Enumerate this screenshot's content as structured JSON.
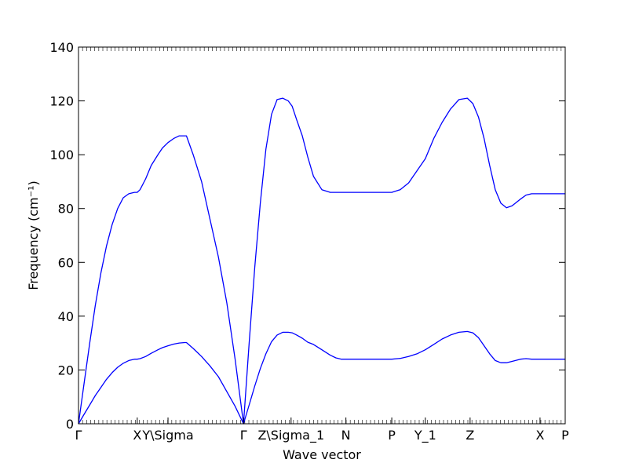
{
  "chart_data": {
    "type": "line",
    "xlabel": "Wave vector",
    "ylabel": "Frequency (cm⁻¹)",
    "ylim": [
      0,
      140
    ],
    "yticks": [
      0,
      20,
      40,
      60,
      80,
      100,
      120,
      140
    ],
    "x_range": [
      0,
      8.7
    ],
    "grid": false,
    "series_color": "#0000ff",
    "x_ticks": [
      {
        "label": "Γ",
        "x": 0.0
      },
      {
        "label": "X",
        "x": 1.05
      },
      {
        "label": "Y\\Sigma",
        "x": 1.6
      },
      {
        "label": "Γ",
        "x": 2.95
      },
      {
        "label": "Z\\Sigma_1",
        "x": 3.8
      },
      {
        "label": "N",
        "x": 4.78
      },
      {
        "label": "P",
        "x": 5.6
      },
      {
        "label": "Y_1",
        "x": 6.2
      },
      {
        "label": "Z",
        "x": 7.0
      },
      {
        "label": "X",
        "x": 8.25
      },
      {
        "label": "P",
        "x": 8.7
      }
    ],
    "series": [
      {
        "x": [
          0.0,
          0.1,
          0.2,
          0.3,
          0.4,
          0.5,
          0.6,
          0.7,
          0.8,
          0.9,
          1.0,
          1.05,
          1.1,
          1.2,
          1.3,
          1.42,
          1.5,
          1.6,
          1.7,
          1.8,
          1.9,
          1.93,
          2.05,
          2.2,
          2.35,
          2.5,
          2.65,
          2.8,
          2.95,
          3.05,
          3.15,
          3.25,
          3.35,
          3.45,
          3.55,
          3.65,
          3.75,
          3.82,
          3.9,
          4.0,
          4.1,
          4.2,
          4.35,
          4.5,
          4.6,
          4.7,
          4.78,
          4.9,
          5.1,
          5.3,
          5.6,
          5.75,
          5.9,
          6.05,
          6.2,
          6.35,
          6.5,
          6.65,
          6.8,
          6.95,
          7.05,
          7.15,
          7.25,
          7.35,
          7.45,
          7.55,
          7.65,
          7.75,
          7.9,
          8.0,
          8.1,
          8.2,
          8.3,
          8.5,
          8.7
        ],
        "y": [
          0,
          15,
          30,
          44,
          56,
          66,
          74,
          80,
          84,
          85.5,
          86,
          86,
          87,
          91,
          96,
          100,
          102.5,
          104.5,
          106,
          107,
          107,
          107,
          100,
          90,
          76,
          62,
          45,
          24,
          0,
          30,
          58,
          82,
          102,
          115,
          120.5,
          121,
          120,
          118,
          113,
          107,
          99,
          92,
          87,
          86,
          86,
          86,
          86,
          86,
          86,
          86,
          86,
          87,
          89.5,
          94,
          98.5,
          106,
          112,
          117,
          120.5,
          121,
          119,
          114,
          106,
          96,
          87,
          82,
          80.3,
          81,
          83.5,
          85,
          85.5,
          85.5,
          85.5,
          85.5,
          85.5
        ]
      },
      {
        "x": [
          0.0,
          0.1,
          0.2,
          0.3,
          0.4,
          0.5,
          0.6,
          0.7,
          0.8,
          0.9,
          1.0,
          1.05,
          1.1,
          1.2,
          1.3,
          1.42,
          1.5,
          1.6,
          1.7,
          1.8,
          1.9,
          1.93,
          2.05,
          2.2,
          2.35,
          2.5,
          2.65,
          2.8,
          2.95,
          3.05,
          3.15,
          3.25,
          3.35,
          3.45,
          3.55,
          3.65,
          3.75,
          3.82,
          3.9,
          4.0,
          4.1,
          4.2,
          4.35,
          4.5,
          4.6,
          4.7,
          4.78,
          4.9,
          5.1,
          5.3,
          5.6,
          5.75,
          5.9,
          6.05,
          6.2,
          6.35,
          6.5,
          6.65,
          6.8,
          6.95,
          7.05,
          7.15,
          7.25,
          7.35,
          7.45,
          7.55,
          7.65,
          7.75,
          7.9,
          8.0,
          8.1,
          8.2,
          8.3,
          8.5,
          8.7
        ],
        "y": [
          0,
          3.5,
          7,
          10.5,
          13.5,
          16.5,
          19,
          21,
          22.5,
          23.5,
          24,
          24,
          24.2,
          25,
          26.2,
          27.5,
          28.3,
          29,
          29.6,
          30,
          30.2,
          30.2,
          28,
          25,
          21.5,
          17.5,
          12,
          6.5,
          0,
          7,
          14,
          20.5,
          26,
          30.5,
          33,
          34,
          34,
          33.8,
          33,
          31.8,
          30.3,
          29.5,
          27.5,
          25.5,
          24.5,
          24,
          24,
          24,
          24,
          24,
          24,
          24.3,
          25,
          26,
          27.5,
          29.5,
          31.5,
          33,
          34,
          34.3,
          33.8,
          32,
          29,
          26,
          23.5,
          22.7,
          22.7,
          23.2,
          24,
          24.2,
          24,
          24,
          24,
          24,
          24
        ]
      }
    ]
  }
}
